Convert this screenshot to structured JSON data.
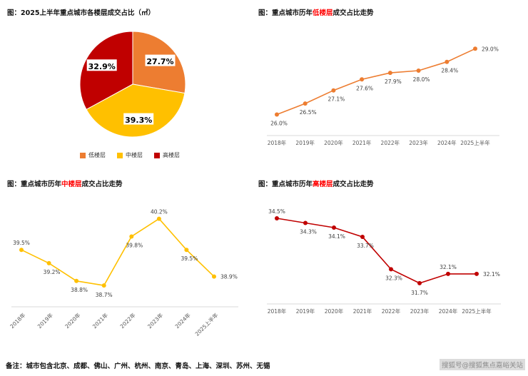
{
  "style": {
    "axis_color": "#d9d9d9",
    "tick_color": "#595959",
    "data_label_color": "#3f3f3f",
    "title_highlight_color": "#ff0000"
  },
  "chart_data": [
    {
      "type": "pie",
      "title": {
        "pre": "图：2025上半年重点城市各楼层成交占比（㎡）",
        "highlight": "",
        "post": ""
      },
      "slices": [
        {
          "label": "低楼层",
          "value": 27.7,
          "display": "27.7%",
          "color": "#ED7D31"
        },
        {
          "label": "中楼层",
          "value": 39.3,
          "display": "39.3%",
          "color": "#FFC000"
        },
        {
          "label": "高楼层",
          "value": 32.9,
          "display": "32.9%",
          "color": "#C00000"
        }
      ],
      "legend_position": "bottom",
      "start_angle_deg": -90
    },
    {
      "type": "line",
      "title": {
        "pre": "图：重点城市历年",
        "highlight": "低楼层",
        "post": "成交占比走势"
      },
      "color": "#ED7D31",
      "categories": [
        "2018年",
        "2019年",
        "2020年",
        "2021年",
        "2022年",
        "2023年",
        "2024年",
        "2025上半年"
      ],
      "values": [
        26.0,
        26.5,
        27.1,
        27.6,
        27.9,
        28.0,
        28.4,
        29.0
      ],
      "labels": [
        "26.0%",
        "26.5%",
        "27.1%",
        "27.6%",
        "27.9%",
        "28.0%",
        "28.4%",
        "29.0%"
      ],
      "grid": false,
      "y_axis_visible": false,
      "x_rotate": false
    },
    {
      "type": "line",
      "title": {
        "pre": "图：重点城市历年",
        "highlight": "中楼层",
        "post": "成交占比走势"
      },
      "color": "#FFC000",
      "categories": [
        "2018年",
        "2019年",
        "2020年",
        "2021年",
        "2022年",
        "2023年",
        "2024年",
        "2025上半年"
      ],
      "values": [
        39.5,
        39.2,
        38.8,
        38.7,
        39.8,
        40.2,
        39.5,
        38.9
      ],
      "labels": [
        "39.5%",
        "39.2%",
        "38.8%",
        "38.7%",
        "39.8%",
        "40.2%",
        "39.5%",
        "38.9%"
      ],
      "grid": false,
      "y_axis_visible": false,
      "x_rotate": true
    },
    {
      "type": "line",
      "title": {
        "pre": "图：重点城市历年",
        "highlight": "高楼层",
        "post": "成交占比走势"
      },
      "color": "#C00000",
      "categories": [
        "2018年",
        "2019年",
        "2020年",
        "2021年",
        "2022年",
        "2023年",
        "2024年",
        "2025上半年"
      ],
      "values": [
        34.5,
        34.3,
        34.1,
        33.7,
        32.3,
        31.7,
        32.1,
        32.1
      ],
      "labels": [
        "34.5%",
        "34.3%",
        "34.1%",
        "33.7%",
        "32.3%",
        "31.7%",
        "32.1%",
        "32.1%"
      ],
      "grid": false,
      "y_axis_visible": false,
      "x_rotate": false
    }
  ],
  "footer": {
    "note": "备注：城市包含北京、成都、佛山、广州、杭州、南京、青岛、上海、深圳、苏州、无锡",
    "watermark": "搜狐号@搜狐焦点嘉峪关站"
  }
}
